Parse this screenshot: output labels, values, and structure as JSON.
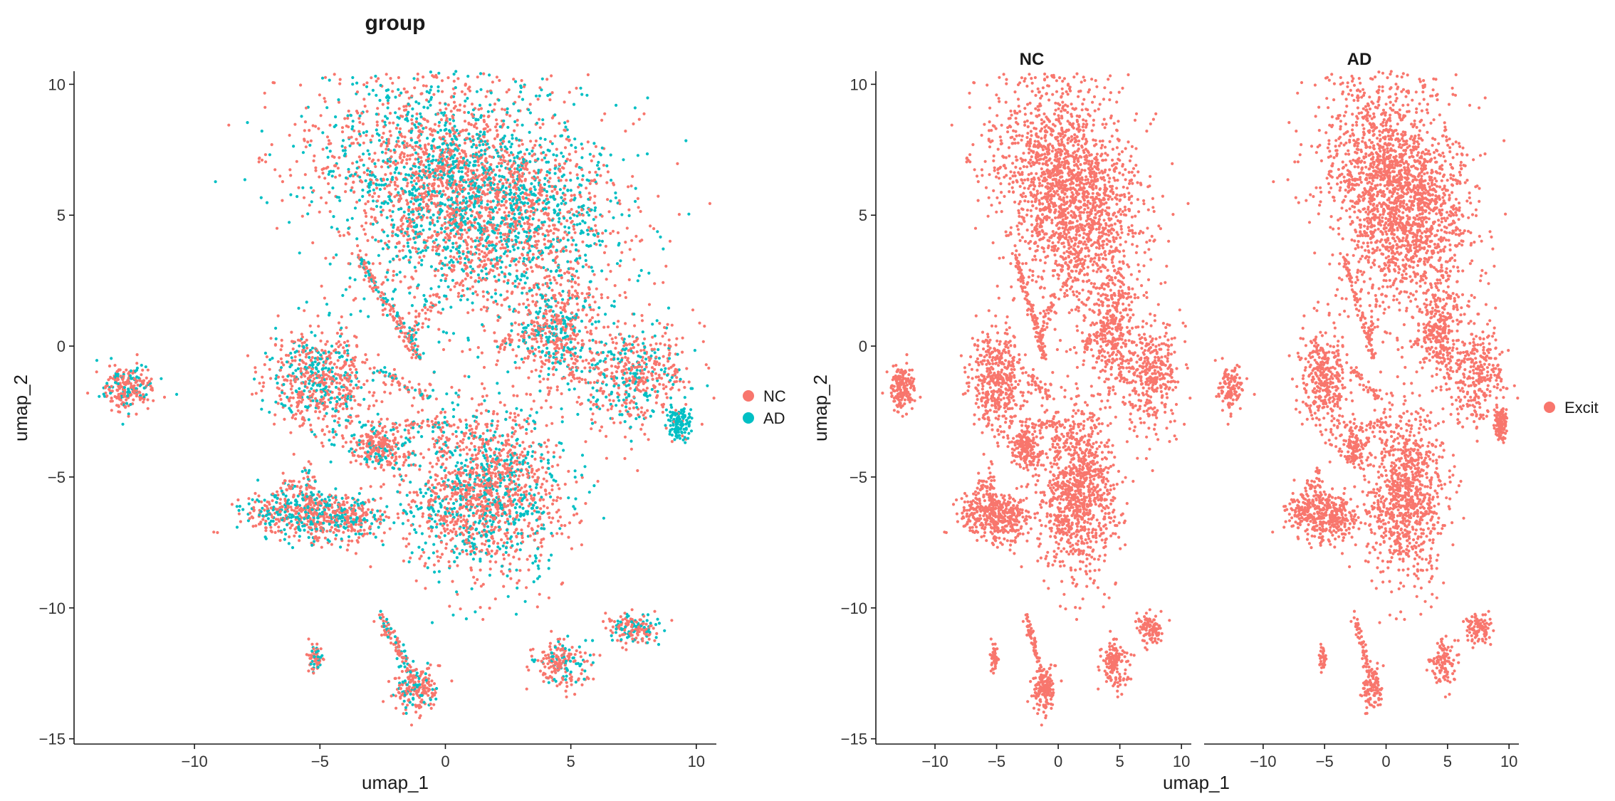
{
  "chart_data": [
    {
      "type": "scatter",
      "title": "group",
      "xlabel": "umap_1",
      "ylabel": "umap_2",
      "xlim": [
        -14.8,
        10.8
      ],
      "ylim": [
        -15.2,
        10.5
      ],
      "xticks": [
        -10,
        -5,
        0,
        5,
        10
      ],
      "yticks": [
        -15,
        -10,
        -5,
        0,
        5,
        10
      ],
      "xtick_labels": [
        "−10",
        "−5",
        "0",
        "5",
        "10"
      ],
      "ytick_labels": [
        "−15",
        "−10",
        "−5",
        "0",
        "5",
        "10"
      ],
      "grid": false,
      "legend_position": "right",
      "series": [
        {
          "name": "NC",
          "color": "#F8766D"
        },
        {
          "name": "AD",
          "color": "#00BFC4"
        }
      ],
      "clusters": [
        {
          "cx": 0.6,
          "cy": 6.2,
          "sx": 3.0,
          "sy": 2.2,
          "rot": -25,
          "n": 2600,
          "ad_frac": 0.42
        },
        {
          "cx": 1.8,
          "cy": 5.0,
          "sx": 2.6,
          "sy": 1.5,
          "rot": -10,
          "n": 900,
          "ad_frac": 0.48
        },
        {
          "cx": 4.5,
          "cy": 0.6,
          "sx": 0.9,
          "sy": 1.1,
          "rot": 0,
          "n": 500,
          "ad_frac": 0.35
        },
        {
          "cx": 7.6,
          "cy": -1.2,
          "sx": 1.1,
          "sy": 0.9,
          "rot": 20,
          "n": 500,
          "ad_frac": 0.35
        },
        {
          "cx": 9.3,
          "cy": -3.0,
          "sx": 0.25,
          "sy": 0.3,
          "rot": 0,
          "n": 120,
          "ad_frac": 0.9
        },
        {
          "cx": -12.6,
          "cy": -1.6,
          "sx": 0.5,
          "sy": 0.45,
          "rot": 0,
          "n": 250,
          "ad_frac": 0.3
        },
        {
          "cx": -5.0,
          "cy": -1.3,
          "sx": 1.0,
          "sy": 0.95,
          "rot": 0,
          "n": 650,
          "ad_frac": 0.3
        },
        {
          "cx": -2.6,
          "cy": -3.8,
          "sx": 0.6,
          "sy": 0.4,
          "rot": 0,
          "n": 250,
          "ad_frac": 0.3
        },
        {
          "cx": -6.0,
          "cy": -6.4,
          "sx": 1.0,
          "sy": 0.45,
          "rot": 0,
          "n": 400,
          "ad_frac": 0.4
        },
        {
          "cx": -3.8,
          "cy": -6.6,
          "sx": 0.7,
          "sy": 0.45,
          "rot": 0,
          "n": 250,
          "ad_frac": 0.4
        },
        {
          "cx": 1.5,
          "cy": -5.5,
          "sx": 1.6,
          "sy": 1.6,
          "rot": 0,
          "n": 1600,
          "ad_frac": 0.35
        },
        {
          "cx": -5.2,
          "cy": -11.9,
          "sx": 0.15,
          "sy": 0.25,
          "rot": 0,
          "n": 70,
          "ad_frac": 0.3
        },
        {
          "cx": -1.2,
          "cy": -13.1,
          "sx": 0.45,
          "sy": 0.4,
          "rot": 0,
          "n": 200,
          "ad_frac": 0.25
        },
        {
          "cx": 4.6,
          "cy": -12.1,
          "sx": 0.55,
          "sy": 0.45,
          "rot": 0,
          "n": 200,
          "ad_frac": 0.35
        },
        {
          "cx": 7.5,
          "cy": -10.8,
          "sx": 0.6,
          "sy": 0.3,
          "rot": 0,
          "n": 160,
          "ad_frac": 0.35
        }
      ],
      "filaments": [
        {
          "from": [
            -3.5,
            3.5
          ],
          "to": [
            -1.0,
            -0.5
          ],
          "n": 160
        },
        {
          "from": [
            -2.0,
            -3.0
          ],
          "to": [
            0.5,
            -3.0
          ],
          "n": 40
        },
        {
          "from": [
            -1.5,
            0.2
          ],
          "to": [
            -0.3,
            2.0
          ],
          "n": 40
        },
        {
          "from": [
            -3.0,
            -0.8
          ],
          "to": [
            -0.5,
            -2.0
          ],
          "n": 60
        },
        {
          "from": [
            -2.6,
            -10.3
          ],
          "to": [
            -1.2,
            -12.8
          ],
          "n": 110
        },
        {
          "from": [
            -5.6,
            -4.5
          ],
          "to": [
            -5.1,
            -7.5
          ],
          "n": 60
        },
        {
          "from": [
            -6.4,
            -5.2
          ],
          "to": [
            -4.3,
            -6.2
          ],
          "n": 50
        },
        {
          "from": [
            2.0,
            0.0
          ],
          "to": [
            4.2,
            0.8
          ],
          "n": 50
        }
      ]
    },
    {
      "type": "scatter",
      "facets": [
        "NC",
        "AD"
      ],
      "xlabel": "umap_1",
      "ylabel": "umap_2",
      "xlim": [
        -14.8,
        10.8
      ],
      "ylim": [
        -15.2,
        10.5
      ],
      "xticks": [
        -10,
        -5,
        0,
        5,
        10
      ],
      "yticks": [
        -15,
        -10,
        -5,
        0,
        5,
        10
      ],
      "xtick_labels": [
        "−10",
        "−5",
        "0",
        "5",
        "10"
      ],
      "ytick_labels": [
        "−15",
        "−10",
        "−5",
        "0",
        "5",
        "10"
      ],
      "grid": false,
      "legend_position": "right",
      "series": [
        {
          "name": "Excit",
          "color": "#F8766D"
        }
      ]
    }
  ]
}
